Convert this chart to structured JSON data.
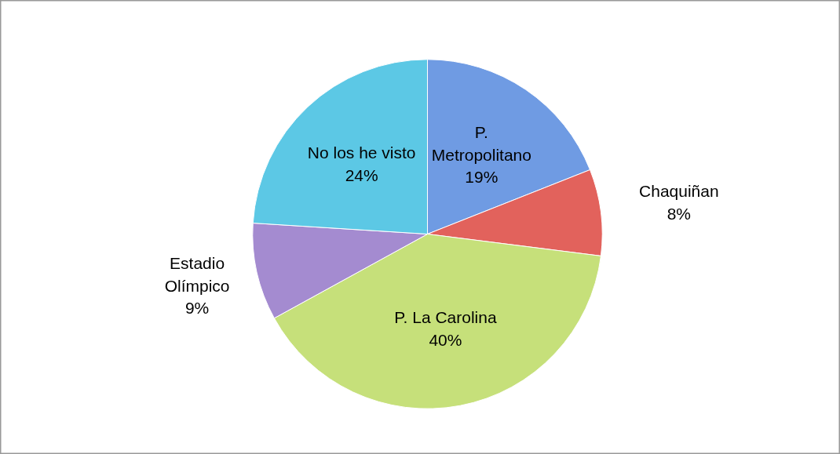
{
  "chart_data": {
    "type": "pie",
    "categories": [
      "P. Metropolitano",
      "Chaquiñan",
      "P. La Carolina",
      "Estadio Olímpico",
      "No los he visto"
    ],
    "values": [
      19,
      8,
      40,
      9,
      24
    ],
    "value_labels": [
      "19%",
      "8%",
      "40%",
      "9%",
      "24%"
    ],
    "colors": [
      "#6f9be3",
      "#e2625c",
      "#c6e07a",
      "#a48bd0",
      "#5cc8e5"
    ]
  }
}
